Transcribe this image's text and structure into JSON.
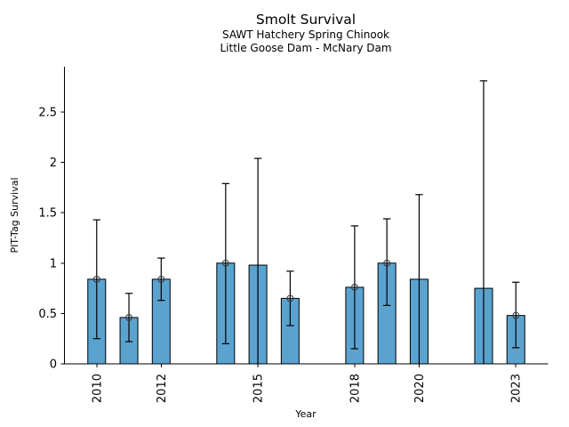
{
  "chart_data": {
    "type": "bar",
    "title": "Smolt Survival",
    "subtitle": [
      "SAWT Hatchery Spring Chinook",
      "Little Goose Dam - McNary Dam"
    ],
    "xlabel": "Year",
    "ylabel": "PIT-Tag Survival",
    "xlim": [
      2009,
      2024
    ],
    "ylim": [
      0,
      2.95
    ],
    "grid": false,
    "bar_color": "#5BA3CF",
    "bar_edge_color": "#000000",
    "errorbar_color": "#000000",
    "marker_color": "#3d3d3d",
    "ytick_values": [
      0,
      0.5,
      1,
      1.5,
      2,
      2.5
    ],
    "ytick_labels": [
      "0",
      "0.5",
      "1",
      "1.5",
      "2",
      "2.5"
    ],
    "xtick_values": [
      2010,
      2012,
      2015,
      2018,
      2020,
      2023
    ],
    "xtick_labels": [
      "2010",
      "2012",
      "2015",
      "2018",
      "2020",
      "2023"
    ],
    "series": [
      {
        "year": 2010,
        "value": 0.84,
        "ci_low": 0.25,
        "ci_high": 1.43,
        "marker": true
      },
      {
        "year": 2011,
        "value": 0.46,
        "ci_low": 0.22,
        "ci_high": 0.7,
        "marker": true
      },
      {
        "year": 2012,
        "value": 0.84,
        "ci_low": 0.63,
        "ci_high": 1.05,
        "marker": true
      },
      {
        "year": 2014,
        "value": 1.0,
        "ci_low": 0.2,
        "ci_high": 1.79,
        "marker": true
      },
      {
        "year": 2015,
        "value": 0.98,
        "ci_low": 0.0,
        "ci_high": 2.04,
        "marker": false
      },
      {
        "year": 2016,
        "value": 0.65,
        "ci_low": 0.38,
        "ci_high": 0.92,
        "marker": true
      },
      {
        "year": 2018,
        "value": 0.76,
        "ci_low": 0.15,
        "ci_high": 1.37,
        "marker": true
      },
      {
        "year": 2019,
        "value": 1.0,
        "ci_low": 0.58,
        "ci_high": 1.44,
        "marker": true
      },
      {
        "year": 2020,
        "value": 0.84,
        "ci_low": 0.0,
        "ci_high": 1.68,
        "marker": false
      },
      {
        "year": 2022,
        "value": 0.75,
        "ci_low": 0.0,
        "ci_high": 2.81,
        "marker": false
      },
      {
        "year": 2023,
        "value": 0.48,
        "ci_low": 0.16,
        "ci_high": 0.81,
        "marker": true
      }
    ]
  }
}
